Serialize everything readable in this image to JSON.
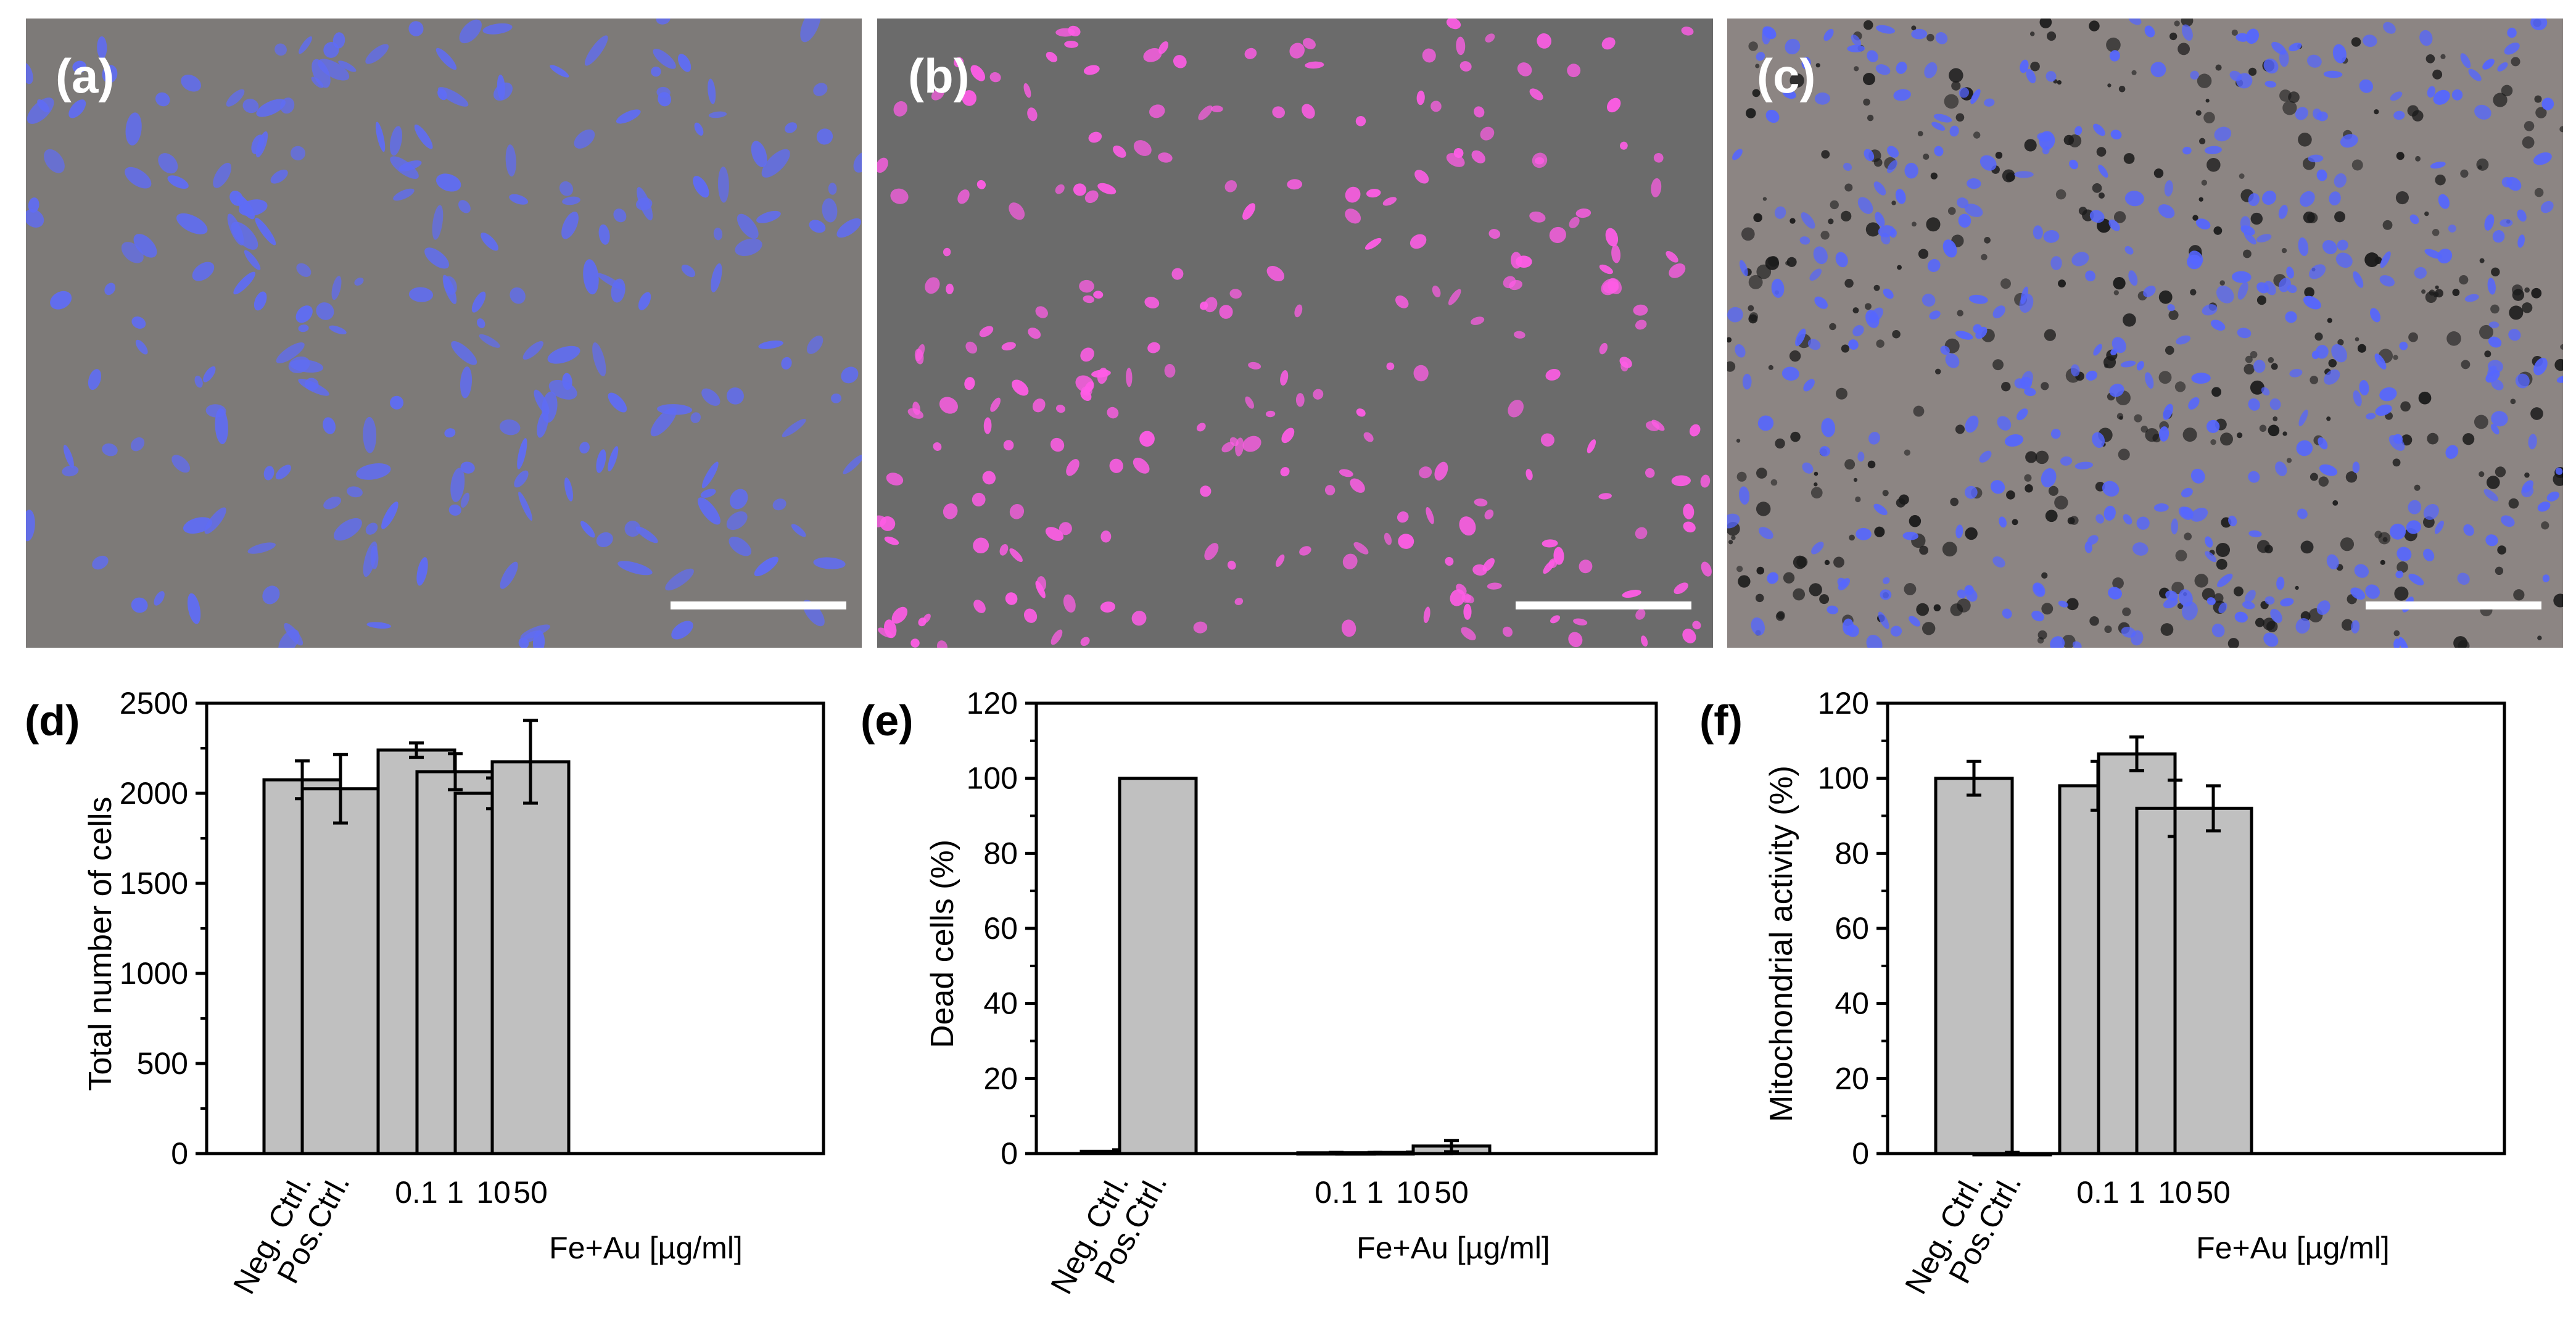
{
  "micrographs": [
    {
      "label": "(a)",
      "cell_color": "#5f6cf5",
      "background": "#7d7a78"
    },
    {
      "label": "(b)",
      "cell_color": "#ff5ce6",
      "background": "#6b6b6b"
    },
    {
      "label": "(c)",
      "cell_color": "#5566ff",
      "background": "#8c8583",
      "particle_color": "#1a1a1a"
    }
  ],
  "colors": {
    "bar_fill": "#c0c0c0",
    "bar_stroke": "#000000",
    "axis": "#000000",
    "scale_bar": "#ffffff"
  },
  "chart_data": [
    {
      "type": "bar",
      "panel_label": "(d)",
      "ylabel": "Total number of cells",
      "xlabel": "Fe+Au [µg/ml]",
      "ylim": [
        0,
        2500
      ],
      "yticks": [
        0,
        500,
        1000,
        1500,
        2000,
        2500
      ],
      "categories": [
        "Neg. Ctrl.",
        "Pos.Ctrl.",
        "0.1",
        "1",
        "10",
        "50"
      ],
      "values": [
        2075,
        2025,
        2240,
        2120,
        2000,
        2175
      ],
      "errors": [
        105,
        190,
        40,
        100,
        85,
        230
      ]
    },
    {
      "type": "bar",
      "panel_label": "(e)",
      "ylabel": "Dead cells (%)",
      "xlabel": "Fe+Au [µg/ml]",
      "ylim": [
        0,
        120
      ],
      "yticks": [
        0,
        20,
        40,
        60,
        80,
        100,
        120
      ],
      "categories": [
        "Neg. Ctrl.",
        "Pos.Ctrl.",
        "0.1",
        "1",
        "10",
        "50"
      ],
      "values": [
        0.6,
        100,
        0.2,
        0.2,
        0.3,
        2.0
      ],
      "errors": [
        0.4,
        0,
        0.1,
        0.1,
        0.1,
        1.5
      ]
    },
    {
      "type": "bar",
      "panel_label": "(f)",
      "ylabel": "Mitochondrial activity (%)",
      "xlabel": "Fe+Au [µg/ml]",
      "ylim": [
        0,
        120
      ],
      "yticks": [
        0,
        20,
        40,
        60,
        80,
        100,
        120
      ],
      "categories": [
        "Neg. Ctrl.",
        "Pos.Ctrl.",
        "0.1",
        "1",
        "10",
        "50"
      ],
      "values": [
        100,
        0,
        98,
        106.5,
        92,
        92
      ],
      "errors": [
        4.5,
        0.3,
        6.5,
        4.5,
        7.5,
        6
      ]
    }
  ]
}
